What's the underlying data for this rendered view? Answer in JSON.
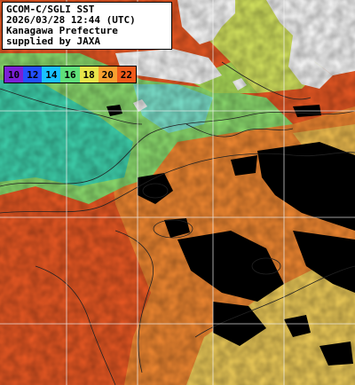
{
  "header": {
    "lines": [
      "GCOM-C/SGLI SST",
      "2026/03/28 12:44 (UTC)",
      "Kanagawa Prefecture",
      "supplied by JAXA"
    ]
  },
  "legend": {
    "labels": [
      "10",
      "12",
      "14",
      "16",
      "18",
      "20",
      "22"
    ],
    "colors": [
      "#7b1fd6",
      "#2350ff",
      "#19c2ff",
      "#5fe07a",
      "#e8e64a",
      "#f8a030",
      "#f05a1a"
    ]
  },
  "palette": {
    "land": "#ffffff",
    "cloud": "#000000",
    "contour": "#222222",
    "grid": "#f4f4f4",
    "warm_sea": "#ee5a24",
    "orange_sea": "#f58a32",
    "yellow_sea": "#f2cf5a",
    "green_sea": "#8ee070",
    "cyan_sea": "#3fd6b0",
    "lightcyan_sea": "#7ee6d0"
  }
}
